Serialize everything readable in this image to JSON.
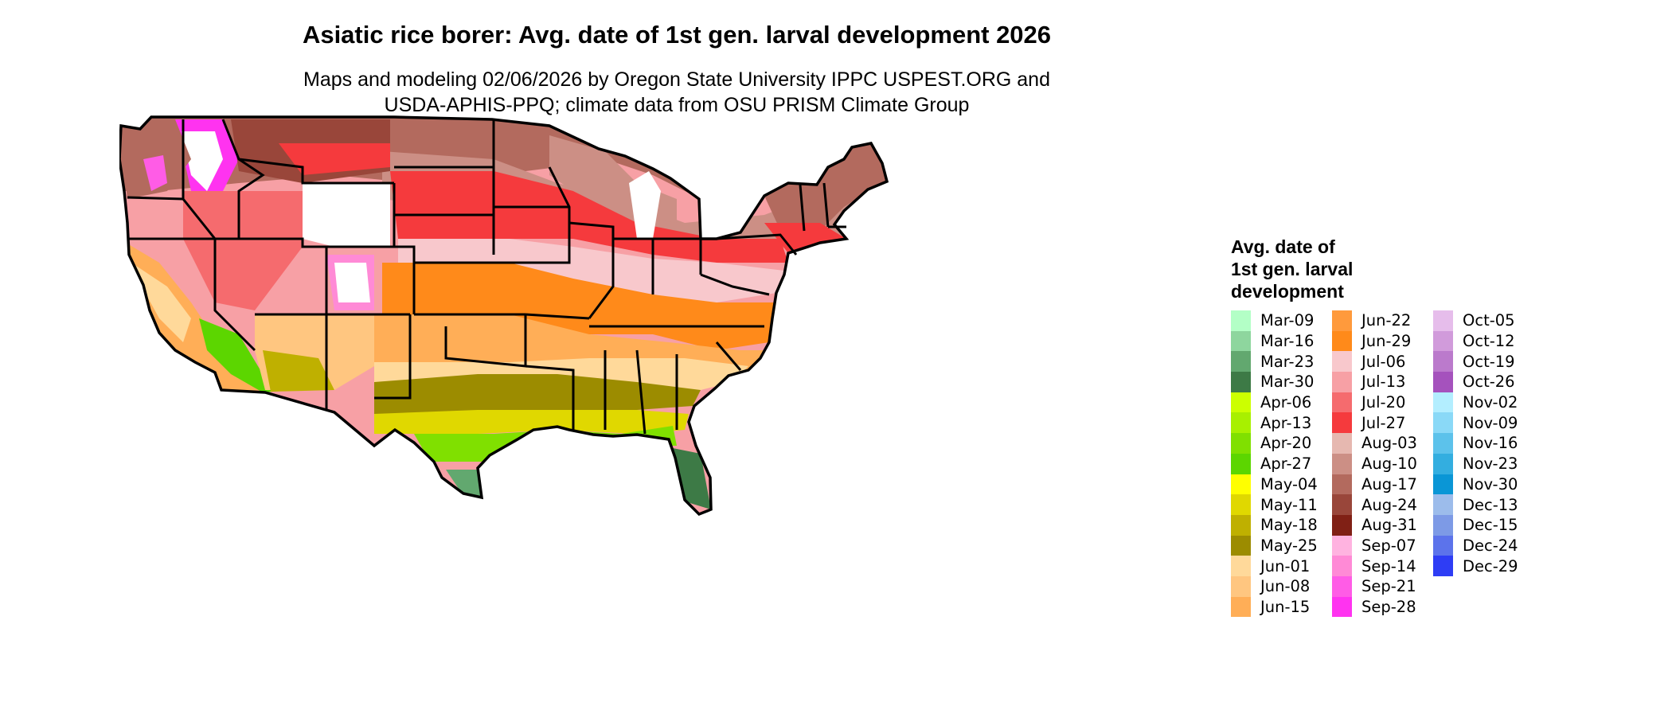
{
  "title": "Asiatic rice borer: Avg. date of 1st gen. larval development 2026",
  "subtitle_lines": [
    "Maps and modeling 02/06/2026 by Oregon State University IPPC USPEST.ORG and",
    "USDA-APHIS-PPQ; climate data from OSU PRISM Climate Group"
  ],
  "legend": {
    "title_lines": [
      "Avg. date of",
      "1st gen. larval",
      "development"
    ],
    "columns": [
      [
        {
          "label": "Mar-09",
          "color": "#B3FFC6"
        },
        {
          "label": "Mar-16",
          "color": "#8ED69E"
        },
        {
          "label": "Mar-23",
          "color": "#62A86F"
        },
        {
          "label": "Mar-30",
          "color": "#3D7A46"
        },
        {
          "label": "Apr-06",
          "color": "#CCFF00"
        },
        {
          "label": "Apr-13",
          "color": "#A8F000"
        },
        {
          "label": "Apr-20",
          "color": "#80E000"
        },
        {
          "label": "Apr-27",
          "color": "#5CD600"
        },
        {
          "label": "May-04",
          "color": "#FFFF00"
        },
        {
          "label": "May-11",
          "color": "#E0D800"
        },
        {
          "label": "May-18",
          "color": "#BFB000"
        },
        {
          "label": "May-25",
          "color": "#9C8C00"
        },
        {
          "label": "Jun-01",
          "color": "#FFD99A"
        },
        {
          "label": "Jun-08",
          "color": "#FFC680"
        },
        {
          "label": "Jun-15",
          "color": "#FFAE57"
        }
      ],
      [
        {
          "label": "Jun-22",
          "color": "#FF9A3C"
        },
        {
          "label": "Jun-29",
          "color": "#FF8A1A"
        },
        {
          "label": "Jul-06",
          "color": "#F8C8CC"
        },
        {
          "label": "Jul-13",
          "color": "#F7A0A5"
        },
        {
          "label": "Jul-20",
          "color": "#F56B6E"
        },
        {
          "label": "Jul-27",
          "color": "#F53A3D"
        },
        {
          "label": "Aug-03",
          "color": "#E6B8B0"
        },
        {
          "label": "Aug-10",
          "color": "#CC8F85"
        },
        {
          "label": "Aug-17",
          "color": "#B36A5E"
        },
        {
          "label": "Aug-24",
          "color": "#99463A"
        },
        {
          "label": "Aug-31",
          "color": "#802015"
        },
        {
          "label": "Sep-07",
          "color": "#FFB3E0"
        },
        {
          "label": "Sep-14",
          "color": "#FF8AD6"
        },
        {
          "label": "Sep-21",
          "color": "#FF5CE6"
        },
        {
          "label": "Sep-28",
          "color": "#FF33F0"
        }
      ],
      [
        {
          "label": "Oct-05",
          "color": "#E6BDEB"
        },
        {
          "label": "Oct-12",
          "color": "#D19BDB"
        },
        {
          "label": "Oct-19",
          "color": "#BB7ACC"
        },
        {
          "label": "Oct-26",
          "color": "#A552BD"
        },
        {
          "label": "Nov-02",
          "color": "#B3EEFF"
        },
        {
          "label": "Nov-09",
          "color": "#8AD9F7"
        },
        {
          "label": "Nov-16",
          "color": "#5CC2EB"
        },
        {
          "label": "Nov-23",
          "color": "#33AEE0"
        },
        {
          "label": "Nov-30",
          "color": "#0A96D6"
        },
        {
          "label": "Dec-13",
          "color": "#9CBCEB"
        },
        {
          "label": "Dec-15",
          "color": "#7D9AE6"
        },
        {
          "label": "Dec-24",
          "color": "#5C73EB"
        },
        {
          "label": "Dec-29",
          "color": "#2E3DF5"
        }
      ]
    ]
  },
  "colors": {
    "no_development": "#FFFFFF",
    "state_border": "#000000"
  }
}
